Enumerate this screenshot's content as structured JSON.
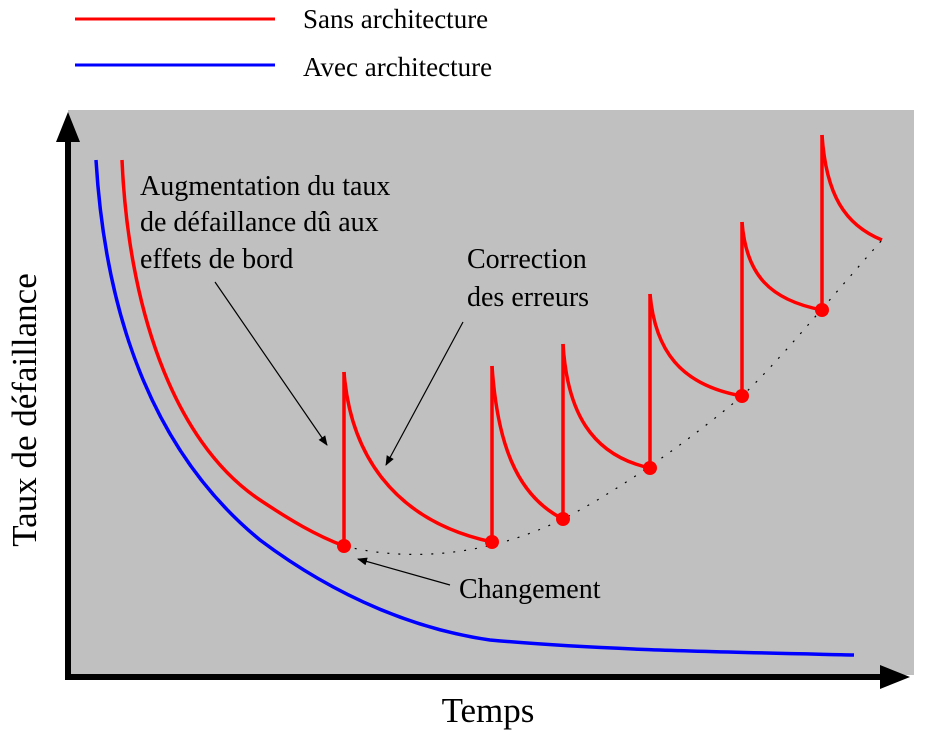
{
  "legend": {
    "items": [
      {
        "label": "Sans architecture",
        "color": "#ff0000"
      },
      {
        "label": "Avec architecture",
        "color": "#0000ff"
      }
    ]
  },
  "axes": {
    "x_label": "Temps",
    "y_label": "Taux de défaillance"
  },
  "annotations": {
    "side_effects": [
      "Augmentation du taux",
      "de défaillance dû aux",
      "effets de bord"
    ],
    "error_correction": [
      "Correction",
      "des erreurs"
    ],
    "change": "Changement"
  },
  "colors": {
    "plot_background": "#c0c0c0",
    "without_architecture": "#ff0000",
    "with_architecture": "#0000ff",
    "axis": "#000000"
  }
}
